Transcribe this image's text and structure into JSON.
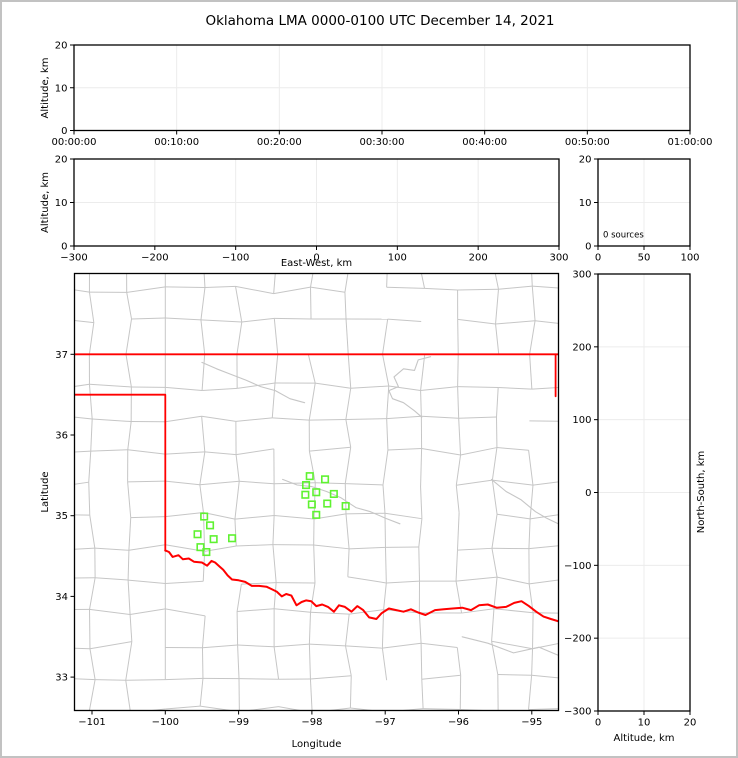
{
  "title": "Oklahoma LMA 0000-0100 UTC December 14, 2021",
  "colors": {
    "axis": "#000000",
    "gridline": "#ececec",
    "county_line": "#c6c6c6",
    "river_line": "#c6c6c6",
    "state_border": "#ff0000",
    "station_marker": "#5ff231",
    "figure_border": "#c2c2c2"
  },
  "panels": {
    "time_height": {
      "ylabel": "Altitude, km",
      "yticks": [
        "0",
        "10",
        "20"
      ],
      "xticks": [
        "00:00:00",
        "00:10:00",
        "00:20:00",
        "00:30:00",
        "00:40:00",
        "00:50:00",
        "01:00:00"
      ]
    },
    "ew_height": {
      "ylabel": "Altitude, km",
      "xlabel": "East-West, km",
      "yticks": [
        "0",
        "10",
        "20"
      ],
      "xticks": [
        "−300",
        "−200",
        "−100",
        "0",
        "100",
        "200",
        "300"
      ]
    },
    "histogram": {
      "annotation": "0 sources",
      "yticks": [
        "0",
        "10",
        "20"
      ],
      "xticks": [
        "0",
        "50",
        "100"
      ]
    },
    "map": {
      "xlabel": "Longitude",
      "ylabel": "Latitude",
      "xticks": [
        "−101",
        "−100",
        "−99",
        "−98",
        "−97",
        "−96",
        "−95"
      ],
      "yticks": [
        "33",
        "34",
        "35",
        "36",
        "37"
      ]
    },
    "ns_height": {
      "xlabel": "Altitude, km",
      "ylabel": "North-South, km",
      "xticks": [
        "0",
        "10",
        "20"
      ],
      "yticks": [
        "−300",
        "−200",
        "−100",
        "0",
        "100",
        "200",
        "300"
      ]
    }
  },
  "chart_data": {
    "type": "composite",
    "panels": [
      {
        "id": "time_height",
        "type": "scatter",
        "ylabel": "Altitude, km",
        "ylim_km": [
          0,
          20
        ],
        "time_span_utc": [
          "00:00:00",
          "01:00:00"
        ],
        "grid": true,
        "points": []
      },
      {
        "id": "ew_height",
        "type": "scatter",
        "xlabel": "East-West, km",
        "ylabel": "Altitude, km",
        "xlim_km": [
          -300,
          300
        ],
        "ylim_km": [
          0,
          20
        ],
        "grid": true,
        "points": []
      },
      {
        "id": "altitude_histogram",
        "type": "line",
        "xlim": [
          0,
          100
        ],
        "ylim_km": [
          0,
          20
        ],
        "annotation": "0 sources",
        "source_count": 0,
        "grid": true,
        "points": []
      },
      {
        "id": "plan_view_map",
        "type": "scatter",
        "xlabel": "Longitude",
        "ylabel": "Latitude",
        "xlim_deg": [
          -101.24,
          -94.63
        ],
        "ylim_deg": [
          32.59,
          38.0
        ],
        "lma_stations_lon_lat": [
          [
            -98.03,
            35.49
          ],
          [
            -97.82,
            35.45
          ],
          [
            -98.08,
            35.38
          ],
          [
            -98.09,
            35.26
          ],
          [
            -97.94,
            35.29
          ],
          [
            -97.7,
            35.27
          ],
          [
            -98.0,
            35.14
          ],
          [
            -97.79,
            35.15
          ],
          [
            -97.54,
            35.12
          ],
          [
            -97.94,
            35.01
          ],
          [
            -99.47,
            34.99
          ],
          [
            -99.39,
            34.88
          ],
          [
            -99.56,
            34.77
          ],
          [
            -99.34,
            34.71
          ],
          [
            -99.09,
            34.72
          ],
          [
            -99.52,
            34.61
          ],
          [
            -99.44,
            34.55
          ]
        ],
        "state_borders": {
          "kansas_oklahoma_lat37": [
            [
              -101.3,
              37.0
            ],
            [
              -94.6,
              37.0
            ]
          ],
          "panhandle_and_west": [
            [
              -101.3,
              36.5
            ],
            [
              -100.0,
              36.5
            ],
            [
              -100.0,
              34.565
            ]
          ],
          "east_segment": [
            [
              -94.675,
              37.0
            ],
            [
              -94.675,
              36.48
            ]
          ],
          "red_river": [
            [
              -100.0,
              34.57
            ],
            [
              -99.95,
              34.55
            ],
            [
              -99.9,
              34.49
            ],
            [
              -99.82,
              34.51
            ],
            [
              -99.76,
              34.46
            ],
            [
              -99.68,
              34.47
            ],
            [
              -99.61,
              34.43
            ],
            [
              -99.5,
              34.42
            ],
            [
              -99.43,
              34.38
            ],
            [
              -99.37,
              34.44
            ],
            [
              -99.32,
              34.42
            ],
            [
              -99.26,
              34.37
            ],
            [
              -99.21,
              34.33
            ],
            [
              -99.15,
              34.26
            ],
            [
              -99.09,
              34.21
            ],
            [
              -99.0,
              34.2
            ],
            [
              -98.91,
              34.18
            ],
            [
              -98.82,
              34.13
            ],
            [
              -98.72,
              34.13
            ],
            [
              -98.62,
              34.12
            ],
            [
              -98.55,
              34.09
            ],
            [
              -98.48,
              34.06
            ],
            [
              -98.41,
              34.0
            ],
            [
              -98.35,
              34.03
            ],
            [
              -98.28,
              34.01
            ],
            [
              -98.21,
              33.89
            ],
            [
              -98.14,
              33.93
            ],
            [
              -98.08,
              33.95
            ],
            [
              -98.01,
              33.94
            ],
            [
              -97.94,
              33.88
            ],
            [
              -97.86,
              33.9
            ],
            [
              -97.78,
              33.87
            ],
            [
              -97.7,
              33.81
            ],
            [
              -97.63,
              33.89
            ],
            [
              -97.55,
              33.87
            ],
            [
              -97.46,
              33.81
            ],
            [
              -97.38,
              33.88
            ],
            [
              -97.3,
              33.83
            ],
            [
              -97.22,
              33.74
            ],
            [
              -97.12,
              33.72
            ],
            [
              -97.05,
              33.79
            ],
            [
              -96.95,
              33.85
            ],
            [
              -96.85,
              33.83
            ],
            [
              -96.75,
              33.81
            ],
            [
              -96.65,
              33.84
            ],
            [
              -96.55,
              33.8
            ],
            [
              -96.45,
              33.77
            ],
            [
              -96.32,
              33.83
            ],
            [
              -96.2,
              33.84
            ],
            [
              -96.08,
              33.85
            ],
            [
              -95.95,
              33.86
            ],
            [
              -95.83,
              33.83
            ],
            [
              -95.72,
              33.89
            ],
            [
              -95.6,
              33.9
            ],
            [
              -95.48,
              33.86
            ],
            [
              -95.35,
              33.87
            ],
            [
              -95.24,
              33.92
            ],
            [
              -95.14,
              33.94
            ],
            [
              -95.04,
              33.88
            ],
            [
              -94.94,
              33.81
            ],
            [
              -94.84,
              33.75
            ],
            [
              -94.74,
              33.72
            ],
            [
              -94.63,
              33.69
            ]
          ]
        },
        "rivers_gray": [
          [
            [
              -96.38,
              36.97
            ],
            [
              -96.55,
              36.93
            ],
            [
              -96.6,
              36.8
            ],
            [
              -96.75,
              36.82
            ],
            [
              -96.88,
              36.72
            ],
            [
              -96.82,
              36.6
            ],
            [
              -96.95,
              36.55
            ],
            [
              -96.9,
              36.45
            ],
            [
              -96.75,
              36.4
            ],
            [
              -96.6,
              36.3
            ],
            [
              -96.5,
              36.22
            ]
          ],
          [
            [
              -95.55,
              35.45
            ],
            [
              -95.35,
              35.3
            ],
            [
              -95.15,
              35.2
            ],
            [
              -94.95,
              35.05
            ],
            [
              -94.8,
              34.97
            ],
            [
              -94.64,
              34.9
            ]
          ],
          [
            [
              -95.95,
              33.5
            ],
            [
              -95.6,
              33.42
            ],
            [
              -95.25,
              33.3
            ],
            [
              -94.9,
              33.37
            ],
            [
              -94.64,
              33.27
            ]
          ],
          [
            [
              -98.4,
              35.45
            ],
            [
              -98.2,
              35.38
            ],
            [
              -98.0,
              35.36
            ],
            [
              -97.8,
              35.3
            ],
            [
              -97.6,
              35.22
            ],
            [
              -97.4,
              35.1
            ],
            [
              -97.2,
              35.05
            ],
            [
              -97.0,
              34.97
            ],
            [
              -96.8,
              34.9
            ]
          ],
          [
            [
              -99.5,
              36.9
            ],
            [
              -99.3,
              36.82
            ],
            [
              -99.1,
              36.75
            ],
            [
              -98.9,
              36.68
            ],
            [
              -98.7,
              36.6
            ],
            [
              -98.5,
              36.55
            ],
            [
              -98.3,
              36.45
            ],
            [
              -98.1,
              36.4
            ]
          ]
        ],
        "county_grid": {
          "lon_start": -101.5,
          "lon_step": 0.5,
          "cols": 15,
          "lat_start": 32.6,
          "lat_step": 0.4,
          "rows": 15,
          "jitter_deg": 0.1,
          "skip_fraction": 0.13
        }
      },
      {
        "id": "ns_height",
        "type": "scatter",
        "xlabel": "Altitude, km",
        "ylabel": "North-South, km",
        "xlim_km": [
          0,
          20
        ],
        "ylim_km": [
          -300,
          300
        ],
        "grid": true,
        "points": []
      }
    ]
  }
}
